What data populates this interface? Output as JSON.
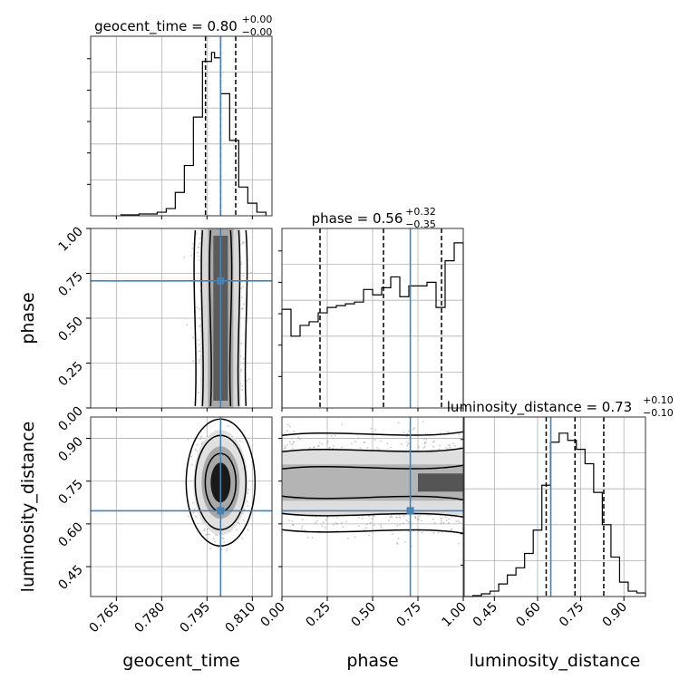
{
  "chart_data": {
    "type": "corner",
    "parameters": [
      "geocent_time",
      "phase",
      "luminosity_distance"
    ],
    "axis_labels": {
      "geocent_time": "geocent_time",
      "phase": "phase",
      "luminosity_distance": "luminosity_distance"
    },
    "titles": {
      "geocent_time": {
        "name": "geocent_time",
        "median": "0.80",
        "plus": "+0.00",
        "minus": "−0.00"
      },
      "phase": {
        "name": "phase",
        "median": "0.56",
        "plus": "+0.32",
        "minus": "−0.35"
      },
      "luminosity_distance": {
        "name": "luminosity_distance",
        "median": "0.73",
        "plus": "+0.10",
        "minus": "−0.10"
      }
    },
    "ranges": {
      "geocent_time": [
        0.7565,
        0.8165
      ],
      "phase": [
        0.0,
        1.0
      ],
      "luminosity_distance": [
        0.345,
        0.975
      ]
    },
    "ticks": {
      "geocent_time": {
        "values": [
          0.765,
          0.78,
          0.795,
          0.81
        ],
        "labels": [
          "0.765",
          "0.780",
          "0.795",
          "0.810"
        ]
      },
      "phase": {
        "values": [
          0.0,
          0.25,
          0.5,
          0.75,
          1.0
        ],
        "labels": [
          "0.00",
          "0.25",
          "0.50",
          "0.75",
          "1.00"
        ]
      },
      "luminosity_distance": {
        "values": [
          0.45,
          0.6,
          0.75,
          0.9
        ],
        "labels": [
          "0.45",
          "0.60",
          "0.75",
          "0.90"
        ]
      }
    },
    "truths": {
      "geocent_time": 0.7995,
      "phase": 0.708,
      "luminosity_distance": 0.646
    },
    "quantile_lines": {
      "geocent_time": [
        0.7945,
        0.7995,
        0.8045
      ],
      "phase": [
        0.21,
        0.56,
        0.88
      ],
      "luminosity_distance": [
        0.63,
        0.73,
        0.83
      ]
    },
    "histograms": {
      "geocent_time": {
        "edges": [
          0.7665,
          0.7725,
          0.7785,
          0.7815,
          0.7845,
          0.7875,
          0.7905,
          0.7935,
          0.7965,
          0.7975,
          0.7995,
          0.8025,
          0.8055,
          0.8085,
          0.8115,
          0.8145
        ],
        "counts": [
          0.005,
          0.01,
          0.02,
          0.04,
          0.13,
          0.28,
          0.55,
          0.86,
          0.91,
          0.88,
          0.68,
          0.42,
          0.16,
          0.07,
          0.02
        ]
      },
      "phase": {
        "edges": [
          0.0,
          0.05,
          0.1,
          0.15,
          0.2,
          0.25,
          0.3,
          0.35,
          0.4,
          0.45,
          0.5,
          0.55,
          0.6,
          0.65,
          0.7,
          0.75,
          0.8,
          0.85,
          0.9,
          0.95,
          1.0
        ],
        "counts": [
          0.55,
          0.4,
          0.46,
          0.48,
          0.53,
          0.56,
          0.57,
          0.58,
          0.59,
          0.66,
          0.63,
          0.67,
          0.73,
          0.62,
          0.68,
          0.68,
          0.7,
          0.56,
          0.82,
          0.92
        ]
      },
      "luminosity_distance": {
        "edges": [
          0.345,
          0.375,
          0.405,
          0.435,
          0.465,
          0.495,
          0.525,
          0.555,
          0.585,
          0.615,
          0.645,
          0.675,
          0.705,
          0.735,
          0.765,
          0.795,
          0.825,
          0.855,
          0.885,
          0.915,
          0.945,
          0.975
        ],
        "counts": [
          0.0,
          0.005,
          0.015,
          0.03,
          0.07,
          0.12,
          0.16,
          0.24,
          0.37,
          0.62,
          0.86,
          0.91,
          0.87,
          0.82,
          0.74,
          0.58,
          0.4,
          0.22,
          0.08,
          0.03,
          0.02
        ]
      }
    },
    "grid": true
  }
}
